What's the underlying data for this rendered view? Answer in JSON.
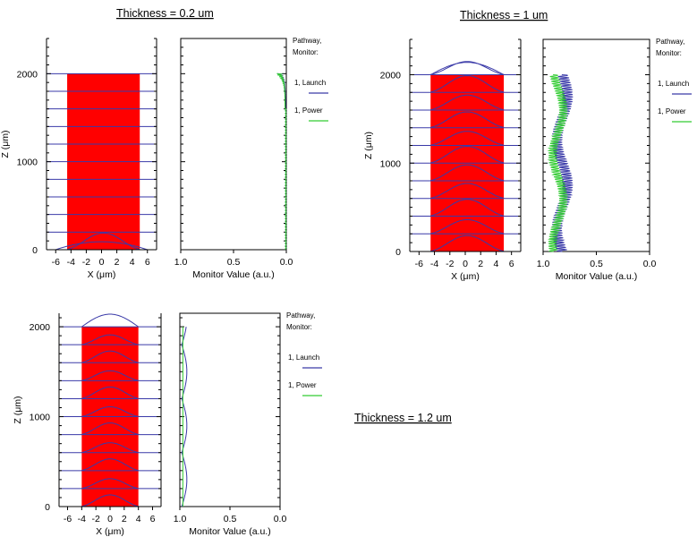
{
  "captions": {
    "top_left": "Thickness = 0.2 um",
    "top_right": "Thickness = 1 um",
    "bottom_right": "Thickness = 1.2 um"
  },
  "colors": {
    "slab": "#ff0000",
    "launch": "#3a3aa8",
    "power": "#33cc33"
  },
  "chart_data": [
    {
      "id": "t02-field",
      "type": "area",
      "xlabel": "X (μm)",
      "ylabel": "Z (μm)",
      "xticks": [
        -6,
        -4,
        -2,
        0,
        2,
        4,
        6
      ],
      "yticks": [
        0,
        1000,
        2000
      ],
      "xlim": [
        -7.2,
        7.2
      ],
      "ylim": [
        0,
        2400
      ],
      "slab_x": [
        -4.5,
        5
      ],
      "slab_z": [
        0,
        2000
      ],
      "lines_z": [
        0,
        200,
        400,
        600,
        800,
        1000,
        1200,
        1400,
        1600,
        1800,
        2000
      ],
      "profile_amplitude": [
        190,
        0,
        0,
        0,
        0,
        0,
        0,
        0,
        0,
        0,
        0
      ]
    },
    {
      "id": "t02-monitor",
      "type": "line",
      "xlabel": "Monitor Value (a.u.)",
      "xticks": [
        1.0,
        0.5,
        0.0
      ],
      "xtick_labels": [
        "1.0",
        "0.5",
        "0.0"
      ],
      "xlim": [
        1.0,
        0.0
      ],
      "legend_title": [
        "Pathway,",
        "Monitor:"
      ],
      "series": [
        {
          "name": "1, Launch",
          "color": "#3a3aa8",
          "shape": "decay",
          "base": 0.0,
          "amp": 0.0
        },
        {
          "name": "1, Power",
          "color": "#33cc33",
          "shape": "decay",
          "base": 0.0,
          "amp": 0.0
        }
      ]
    },
    {
      "id": "t1-field",
      "type": "area",
      "xlabel": "X (μm)",
      "ylabel": "Z (μm)",
      "xticks": [
        -6,
        -4,
        -2,
        0,
        2,
        4,
        6
      ],
      "yticks": [
        0,
        1000,
        2000
      ],
      "xlim": [
        -7.2,
        7.2
      ],
      "ylim": [
        0,
        2400
      ],
      "slab_x": [
        -4.5,
        5
      ],
      "slab_z": [
        0,
        2000
      ],
      "lines_z": [
        0,
        200,
        400,
        600,
        800,
        1000,
        1200,
        1400,
        1600,
        1800,
        2000
      ],
      "profile_amplitude": [
        180,
        160,
        190,
        170,
        180,
        190,
        160,
        180,
        170,
        190,
        150
      ],
      "top_profile_amplitude": 140
    },
    {
      "id": "t1-monitor",
      "type": "line",
      "xlabel": "Monitor Value (a.u.)",
      "xticks": [
        1.0,
        0.5,
        0.0
      ],
      "xtick_labels": [
        "1.0",
        "0.5",
        "0.0"
      ],
      "xlim": [
        1.0,
        0.0
      ],
      "legend_title": [
        "Pathway,",
        "Monitor:"
      ],
      "series": [
        {
          "name": "1, Launch",
          "color": "#3a3aa8",
          "shape": "oscillating",
          "base": 0.82,
          "amp": 0.05
        },
        {
          "name": "1, Power",
          "color": "#33cc33",
          "shape": "oscillating",
          "base": 0.86,
          "amp": 0.04
        }
      ]
    },
    {
      "id": "t12-field",
      "type": "area",
      "xlabel": "X (μm)",
      "ylabel": "Z (μm)",
      "xticks": [
        -6,
        -4,
        -2,
        0,
        2,
        4,
        6
      ],
      "yticks": [
        0,
        1000,
        2000
      ],
      "xlim": [
        -7.2,
        7.2
      ],
      "ylim": [
        0,
        2150
      ],
      "slab_x": [
        -4,
        4
      ],
      "slab_z": [
        0,
        2000
      ],
      "lines_z": [
        0,
        200,
        400,
        600,
        800,
        1000,
        1200,
        1400,
        1600,
        1800,
        2000
      ],
      "profile_amplitude": [
        130,
        110,
        130,
        110,
        130,
        110,
        130,
        110,
        130,
        110,
        0
      ],
      "top_profile_amplitude": 140
    },
    {
      "id": "t12-monitor",
      "type": "line",
      "xlabel": "Monitor Value (a.u.)",
      "xticks": [
        1.0,
        0.5,
        0.0
      ],
      "xtick_labels": [
        "1.0",
        "0.5",
        "0.0"
      ],
      "xlim": [
        1.0,
        0.0
      ],
      "legend_title": [
        "Pathway,",
        "Monitor:"
      ],
      "series": [
        {
          "name": "1, Launch",
          "color": "#3a3aa8",
          "shape": "sine",
          "base": 0.97,
          "amp": 0.05
        },
        {
          "name": "1, Power",
          "color": "#33cc33",
          "shape": "flat",
          "base": 0.97,
          "amp": 0.0
        }
      ]
    }
  ]
}
